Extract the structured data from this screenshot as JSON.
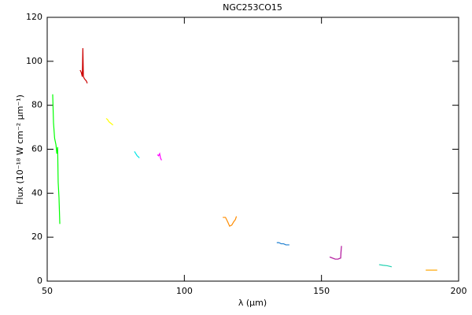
{
  "chart_data": {
    "type": "line",
    "title": "NGC253CO15",
    "x_label": "λ (μm)",
    "y_label": "Flux (10⁻¹⁸ W cm⁻² μm⁻¹)",
    "xlim": [
      50,
      200
    ],
    "ylim": [
      0,
      120
    ],
    "xticks": [
      50,
      100,
      150,
      200
    ],
    "yticks": [
      0,
      20,
      40,
      60,
      80,
      100,
      120
    ],
    "series": [
      {
        "color": "#00ff00",
        "x": [
          52.0,
          52.3,
          52.7,
          53.2,
          53.5,
          53.8,
          54.0,
          54.3,
          54.6
        ],
        "values": [
          85,
          72,
          65,
          62,
          58,
          61,
          45,
          38,
          26
        ]
      },
      {
        "color": "#cc0000",
        "x": [
          62.0,
          62.4,
          62.8,
          63.0,
          63.2,
          63.6,
          64.3,
          64.6
        ],
        "values": [
          96,
          95,
          93,
          106,
          93,
          92,
          91,
          90
        ]
      },
      {
        "color": "#ffff00",
        "x": [
          71.5,
          72.0,
          72.5,
          73.0,
          73.5,
          74.0
        ],
        "values": [
          74,
          73.5,
          72.5,
          72,
          71.5,
          71
        ]
      },
      {
        "color": "#00e5e5",
        "x": [
          81.8,
          82.3,
          82.8,
          83.3,
          83.6
        ],
        "values": [
          59,
          58,
          57,
          56.5,
          56
        ]
      },
      {
        "color": "#ff00ff",
        "x": [
          90.2,
          90.6,
          91.0,
          91.3,
          91.7
        ],
        "values": [
          57.5,
          57,
          58,
          56,
          55
        ]
      },
      {
        "color": "#ff8c00",
        "x": [
          114.0,
          115.0,
          115.8,
          116.5,
          117.3,
          118.0,
          118.6,
          119.0
        ],
        "values": [
          29,
          29,
          27,
          25,
          25.5,
          27,
          28,
          29.5
        ]
      },
      {
        "color": "#1e7fd0",
        "x": [
          133.7,
          134.5,
          135.3,
          136.2,
          137.0,
          137.7,
          138.3
        ],
        "values": [
          17.5,
          17.5,
          17,
          17,
          16.5,
          16.5,
          16.5
        ]
      },
      {
        "color": "#b0109a",
        "x": [
          153.0,
          154.0,
          155.0,
          156.0,
          157.0,
          157.1,
          157.3
        ],
        "values": [
          11,
          10.5,
          10,
          10,
          10.5,
          13,
          16
        ]
      },
      {
        "color": "#20d0b0",
        "x": [
          171.0,
          172.5,
          174.0,
          175.6
        ],
        "values": [
          7.5,
          7.2,
          7,
          6.5
        ]
      },
      {
        "color": "#ffa500",
        "x": [
          188.0,
          189.5,
          191.0,
          192.2
        ],
        "values": [
          5,
          5,
          5,
          5
        ]
      }
    ]
  }
}
